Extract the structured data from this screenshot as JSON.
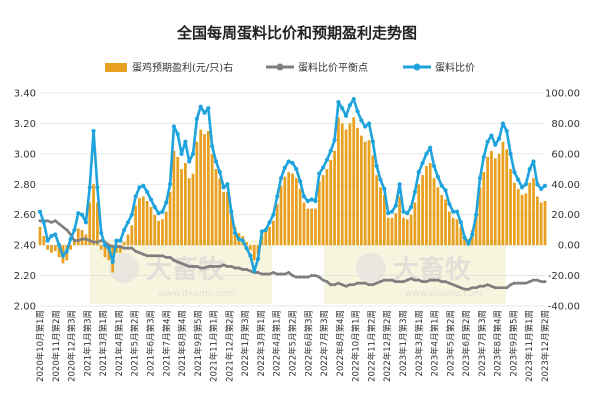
{
  "chart_data": {
    "type": "bar+line",
    "title": "全国每周蛋料比价和预期盈利走势图",
    "legend": [
      {
        "name": "蛋鸡预期盈利(元/只)右",
        "type": "bar",
        "color": "#E8A020"
      },
      {
        "name": "蛋料比价平衡点",
        "type": "line",
        "color": "#7F7F7F"
      },
      {
        "name": "蛋料比价",
        "type": "line",
        "color": "#1FA3DC"
      }
    ],
    "left_axis": {
      "ticks": [
        "2.00",
        "2.20",
        "2.40",
        "2.60",
        "2.80",
        "3.00",
        "3.20",
        "3.40"
      ],
      "min": 2.0,
      "max": 3.4
    },
    "right_axis": {
      "ticks": [
        "-40.00",
        "-20.00",
        "0.00",
        "20.00",
        "40.00",
        "60.00",
        "80.00",
        "100.00"
      ],
      "min": -40,
      "max": 100
    },
    "x_labels": [
      "2020年10月第1周",
      "2020年11月第2周",
      "2020年12月第3周",
      "2021年1月第3周",
      "2021年3月第1周",
      "2021年4月第1周",
      "2021年5月第2周",
      "2021年6月第3周",
      "2021年7月第4周",
      "2021年8月第4周",
      "2021年9月第5周",
      "2021年11月第1周",
      "2021年12月第2周",
      "2022年1月第3周",
      "2022年3月第1周",
      "2022年4月第1周",
      "2022年5月第2周",
      "2022年6月第3周",
      "2022年7月第3周",
      "2022年8月第4周",
      "2022年10月第1周",
      "2022年11月第2周",
      "2022年12月第2周",
      "2023年1月第3周",
      "2023年3月第1周",
      "2023年4月第1周",
      "2023年5月第2周",
      "2023年6月第2周",
      "2023年7月第3周",
      "2023年8月第4周",
      "2023年9月第5周",
      "2023年11月第1周",
      "2023年12月第2周"
    ],
    "ratio": [
      2.62,
      2.55,
      2.43,
      2.46,
      2.47,
      2.4,
      2.33,
      2.36,
      2.44,
      2.5,
      2.61,
      2.6,
      2.55,
      2.78,
      3.15,
      2.78,
      2.48,
      2.4,
      2.38,
      2.29,
      2.43,
      2.43,
      2.5,
      2.55,
      2.6,
      2.72,
      2.78,
      2.79,
      2.75,
      2.7,
      2.65,
      2.61,
      2.62,
      2.68,
      2.8,
      3.18,
      3.13,
      3.0,
      3.08,
      2.95,
      3.0,
      3.23,
      3.31,
      3.27,
      3.3,
      3.05,
      2.95,
      2.88,
      2.78,
      2.8,
      2.62,
      2.48,
      2.44,
      2.43,
      2.38,
      2.33,
      2.23,
      2.31,
      2.49,
      2.5,
      2.55,
      2.6,
      2.72,
      2.84,
      2.91,
      2.95,
      2.94,
      2.9,
      2.82,
      2.72,
      2.69,
      2.7,
      2.69,
      2.87,
      2.91,
      2.96,
      3.02,
      3.09,
      3.34,
      3.3,
      3.25,
      3.32,
      3.36,
      3.28,
      3.22,
      3.18,
      3.2,
      3.08,
      2.92,
      2.83,
      2.77,
      2.61,
      2.62,
      2.66,
      2.8,
      2.62,
      2.61,
      2.65,
      2.75,
      2.88,
      2.94,
      3.0,
      3.04,
      2.92,
      2.85,
      2.79,
      2.76,
      2.67,
      2.62,
      2.62,
      2.55,
      2.45,
      2.41,
      2.47,
      2.6,
      2.84,
      2.98,
      3.08,
      3.12,
      3.06,
      3.1,
      3.2,
      3.15,
      3.0,
      2.88,
      2.83,
      2.78,
      2.8,
      2.9,
      2.95,
      2.8,
      2.77,
      2.79
    ],
    "balance": [
      2.56,
      2.56,
      2.56,
      2.55,
      2.56,
      2.54,
      2.52,
      2.5,
      2.47,
      2.43,
      2.43,
      2.44,
      2.44,
      2.43,
      2.42,
      2.42,
      2.43,
      2.42,
      2.4,
      2.39,
      2.39,
      2.39,
      2.38,
      2.38,
      2.38,
      2.36,
      2.35,
      2.34,
      2.33,
      2.33,
      2.33,
      2.33,
      2.33,
      2.32,
      2.32,
      2.3,
      2.29,
      2.28,
      2.27,
      2.26,
      2.26,
      2.26,
      2.25,
      2.25,
      2.26,
      2.26,
      2.26,
      2.26,
      2.27,
      2.26,
      2.26,
      2.25,
      2.25,
      2.24,
      2.24,
      2.23,
      2.22,
      2.22,
      2.21,
      2.21,
      2.21,
      2.22,
      2.21,
      2.21,
      2.21,
      2.22,
      2.2,
      2.19,
      2.19,
      2.19,
      2.19,
      2.2,
      2.2,
      2.19,
      2.17,
      2.16,
      2.14,
      2.14,
      2.15,
      2.14,
      2.13,
      2.14,
      2.14,
      2.15,
      2.15,
      2.15,
      2.14,
      2.14,
      2.15,
      2.16,
      2.17,
      2.17,
      2.17,
      2.16,
      2.16,
      2.16,
      2.17,
      2.18,
      2.17,
      2.17,
      2.16,
      2.16,
      2.17,
      2.17,
      2.17,
      2.16,
      2.16,
      2.15,
      2.14,
      2.13,
      2.12,
      2.11,
      2.11,
      2.12,
      2.12,
      2.13,
      2.13,
      2.14,
      2.13,
      2.12,
      2.12,
      2.12,
      2.12,
      2.14,
      2.15,
      2.15,
      2.15,
      2.15,
      2.16,
      2.17,
      2.17,
      2.16,
      2.16
    ],
    "profit": [
      12,
      6,
      -3,
      -5,
      -4,
      -8,
      -12,
      -10,
      -3,
      3,
      11,
      10,
      7,
      28,
      40,
      28,
      -3,
      -8,
      -10,
      -18,
      -5,
      -5,
      2,
      7,
      13,
      26,
      31,
      32,
      29,
      25,
      20,
      16,
      17,
      22,
      35,
      62,
      58,
      50,
      54,
      44,
      47,
      68,
      76,
      73,
      75,
      60,
      50,
      44,
      35,
      35,
      22,
      12,
      8,
      6,
      2,
      -3,
      -10,
      -6,
      8,
      9,
      12,
      16,
      27,
      39,
      45,
      48,
      47,
      44,
      37,
      28,
      24,
      24,
      24,
      42,
      46,
      50,
      56,
      62,
      84,
      80,
      76,
      80,
      84,
      77,
      72,
      68,
      69,
      59,
      46,
      38,
      33,
      18,
      18,
      21,
      32,
      18,
      17,
      20,
      28,
      40,
      46,
      52,
      54,
      44,
      38,
      33,
      30,
      22,
      18,
      17,
      12,
      6,
      4,
      10,
      20,
      38,
      48,
      58,
      62,
      57,
      60,
      68,
      63,
      50,
      41,
      37,
      33,
      34,
      41,
      44,
      32,
      28,
      29
    ]
  },
  "watermark": {
    "brand": "大畜牧",
    "url": "www.dxumu.com"
  }
}
